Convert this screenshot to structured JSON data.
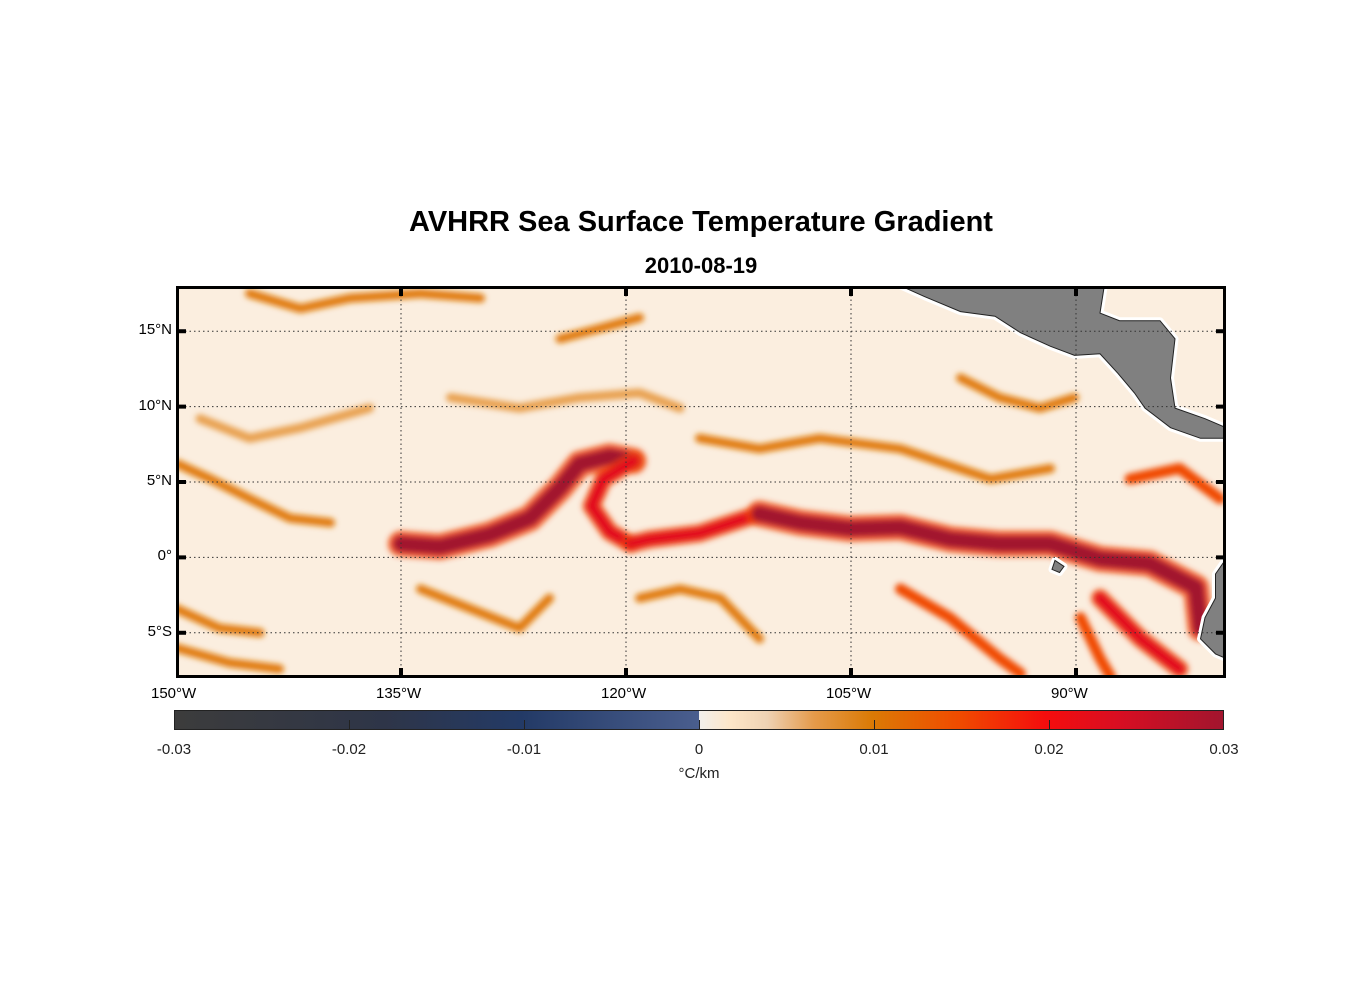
{
  "title": "AVHRR Sea Surface Temperature Gradient",
  "subtitle": "2010-08-19",
  "chart_data": {
    "type": "heatmap",
    "title": "AVHRR Sea Surface Temperature Gradient",
    "subtitle": "2010-08-19",
    "lon_range": [
      -150,
      -80
    ],
    "lat_range": [
      -8,
      18
    ],
    "grid": true,
    "x_ticks": [
      {
        "lon": -150,
        "label": "150°W"
      },
      {
        "lon": -135,
        "label": "135°W"
      },
      {
        "lon": -120,
        "label": "120°W"
      },
      {
        "lon": -105,
        "label": "105°W"
      },
      {
        "lon": -90,
        "label": "90°W"
      }
    ],
    "y_ticks": [
      {
        "lat": 15,
        "label": "15°N"
      },
      {
        "lat": 10,
        "label": "10°N"
      },
      {
        "lat": 5,
        "label": "5°N"
      },
      {
        "lat": 0,
        "label": "0°"
      },
      {
        "lat": -5,
        "label": "5°S"
      }
    ],
    "colorbar": {
      "range": [
        -0.03,
        0.03
      ],
      "ticks": [
        "-0.03",
        "-0.02",
        "-0.01",
        "0",
        "0.01",
        "0.02",
        "0.03"
      ],
      "tick_values": [
        -0.03,
        -0.02,
        -0.01,
        0,
        0.01,
        0.02,
        0.03
      ],
      "label": "°C/km",
      "location": "bottom"
    },
    "background_value": 0.002,
    "fronts": [
      {
        "value": 0.03,
        "points": [
          [
            -135,
            0.9
          ],
          [
            -132.4,
            0.7
          ],
          [
            -129.1,
            1.5
          ],
          [
            -126.4,
            2.6
          ],
          [
            -124.4,
            4.6
          ],
          [
            -123.1,
            6.2
          ],
          [
            -121.1,
            6.7
          ],
          [
            -119.5,
            6.4
          ]
        ]
      },
      {
        "value": 0.02,
        "points": [
          [
            -119.5,
            6.4
          ],
          [
            -121.5,
            5.2
          ],
          [
            -122.3,
            3.4
          ],
          [
            -121.1,
            1.7
          ],
          [
            -119.7,
            0.9
          ]
        ]
      },
      {
        "value": 0.02,
        "points": [
          [
            -119.7,
            0.9
          ],
          [
            -118.4,
            1.2
          ],
          [
            -115.1,
            1.6
          ],
          [
            -111.1,
            2.9
          ]
        ]
      },
      {
        "value": 0.03,
        "points": [
          [
            -111.1,
            2.9
          ],
          [
            -108.4,
            2.3
          ],
          [
            -105.1,
            1.9
          ],
          [
            -101.7,
            2.0
          ],
          [
            -98.4,
            1.2
          ],
          [
            -95.1,
            0.9
          ],
          [
            -91.7,
            0.9
          ],
          [
            -88.4,
            -0.1
          ],
          [
            -85.1,
            -0.4
          ],
          [
            -82,
            -2
          ],
          [
            -81.7,
            -4.7
          ]
        ]
      },
      {
        "value": 0.012,
        "points": [
          [
            -149.9,
            6.2
          ],
          [
            -147.7,
            5.2
          ],
          [
            -145.1,
            3.9
          ],
          [
            -142.4,
            2.6
          ],
          [
            -139.7,
            2.3
          ]
        ]
      },
      {
        "value": 0.011,
        "points": [
          [
            -150,
            -3.4
          ],
          [
            -147.1,
            -4.7
          ],
          [
            -144.4,
            -5.0
          ]
        ]
      },
      {
        "value": 0.011,
        "points": [
          [
            -133.7,
            -2.1
          ],
          [
            -130.4,
            -3.4
          ],
          [
            -127.1,
            -4.7
          ],
          [
            -125.1,
            -2.7
          ]
        ]
      },
      {
        "value": 0.011,
        "points": [
          [
            -119.1,
            -2.7
          ],
          [
            -116.4,
            -2.1
          ],
          [
            -113.7,
            -2.7
          ],
          [
            -111.1,
            -5.4
          ]
        ]
      },
      {
        "value": 0.018,
        "points": [
          [
            -101.7,
            -2.1
          ],
          [
            -98.4,
            -4.0
          ],
          [
            -95.1,
            -6.7
          ],
          [
            -93.7,
            -7.7
          ]
        ]
      },
      {
        "value": 0.012,
        "points": [
          [
            -97.7,
            11.9
          ],
          [
            -95.1,
            10.6
          ],
          [
            -92.4,
            9.9
          ],
          [
            -90.1,
            10.6
          ]
        ]
      },
      {
        "value": 0.011,
        "points": [
          [
            -115.1,
            7.9
          ],
          [
            -111.1,
            7.2
          ],
          [
            -107.1,
            7.9
          ],
          [
            -101.7,
            7.2
          ],
          [
            -95.7,
            5.2
          ],
          [
            -91.7,
            5.9
          ]
        ]
      },
      {
        "value": 0.012,
        "points": [
          [
            -145.1,
            17.5
          ],
          [
            -141.7,
            16.5
          ],
          [
            -138.4,
            17.2
          ],
          [
            -133.7,
            17.5
          ],
          [
            -129.7,
            17.2
          ]
        ]
      },
      {
        "value": 0.01,
        "points": [
          [
            -131.7,
            10.6
          ],
          [
            -127.1,
            9.9
          ],
          [
            -123.1,
            10.6
          ],
          [
            -119.1,
            10.9
          ],
          [
            -116.4,
            9.9
          ]
        ]
      },
      {
        "value": 0.01,
        "points": [
          [
            -148.4,
            9.2
          ],
          [
            -145.1,
            7.9
          ],
          [
            -141.7,
            8.6
          ],
          [
            -137.1,
            9.9
          ]
        ]
      },
      {
        "value": 0.02,
        "points": [
          [
            -88.4,
            -2.7
          ],
          [
            -85.7,
            -5.4
          ],
          [
            -83.1,
            -7.4
          ]
        ]
      },
      {
        "value": 0.015,
        "points": [
          [
            -89.7,
            -4.0
          ],
          [
            -88.4,
            -6.7
          ],
          [
            -87.7,
            -7.9
          ]
        ]
      },
      {
        "value": 0.011,
        "points": [
          [
            -150,
            -6.0
          ],
          [
            -146.4,
            -7.0
          ],
          [
            -143.1,
            -7.4
          ]
        ]
      },
      {
        "value": 0.015,
        "points": [
          [
            -86.4,
            5.2
          ],
          [
            -83.1,
            5.9
          ],
          [
            -80.4,
            3.9
          ]
        ]
      },
      {
        "value": 0.012,
        "points": [
          [
            -124.4,
            14.5
          ],
          [
            -121.7,
            15.2
          ],
          [
            -119.1,
            15.9
          ]
        ]
      }
    ],
    "land": [
      [
        [
          -101.9,
          18.1
        ],
        [
          -100.1,
          17.3
        ],
        [
          -97.7,
          16.3
        ],
        [
          -95.4,
          16.0
        ],
        [
          -93.7,
          14.9
        ],
        [
          -91.7,
          14.0
        ],
        [
          -90.1,
          13.4
        ],
        [
          -88.4,
          13.5
        ],
        [
          -87.2,
          12.2
        ],
        [
          -86.1,
          10.9
        ],
        [
          -85.4,
          9.9
        ],
        [
          -83.7,
          8.6
        ],
        [
          -81.7,
          7.9
        ],
        [
          -80,
          7.9
        ],
        [
          -80,
          8.6
        ],
        [
          -81.4,
          9.2
        ],
        [
          -83.4,
          9.9
        ],
        [
          -83.7,
          11.9
        ],
        [
          -83.4,
          14.5
        ],
        [
          -84.4,
          15.7
        ],
        [
          -87.1,
          15.7
        ],
        [
          -88.4,
          16.2
        ],
        [
          -88.1,
          18.1
        ]
      ],
      [
        [
          -80,
          -0.1
        ],
        [
          -80.7,
          -1.1
        ],
        [
          -80.7,
          -2.7
        ],
        [
          -81.4,
          -4.0
        ],
        [
          -81.7,
          -5.4
        ],
        [
          -80.7,
          -6.4
        ],
        [
          -80,
          -6.7
        ]
      ],
      [
        [
          -91.4,
          -0.2
        ],
        [
          -90.8,
          -0.6
        ],
        [
          -91.1,
          -1.0
        ],
        [
          -91.6,
          -0.8
        ]
      ]
    ]
  }
}
